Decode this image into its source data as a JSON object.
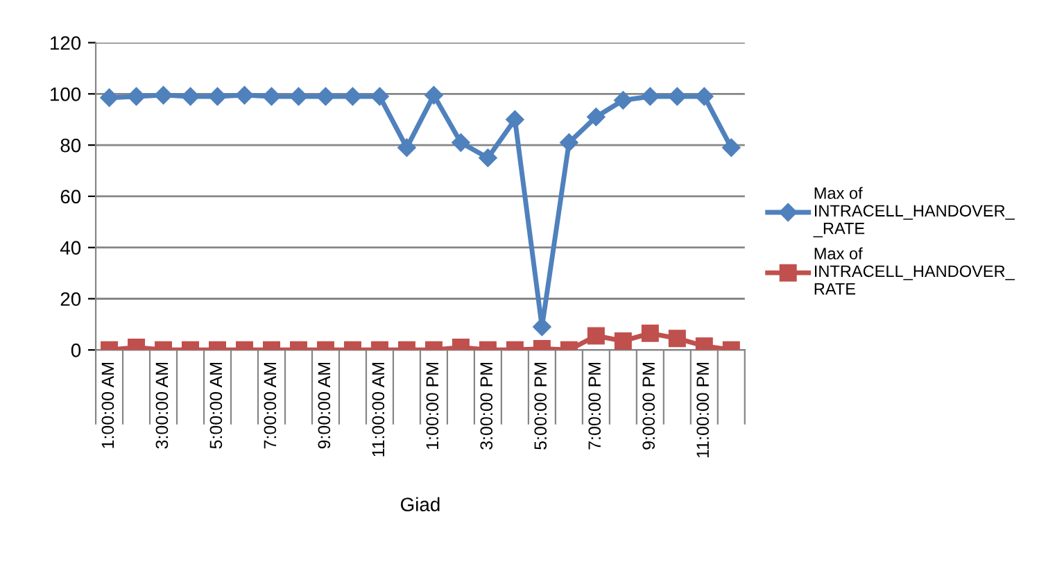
{
  "chart_data": {
    "type": "line",
    "xlabel": "Giad",
    "categories": [
      "1:00:00 AM",
      null,
      "3:00:00 AM",
      null,
      "5:00:00 AM",
      null,
      "7:00:00 AM",
      null,
      "9:00:00 AM",
      null,
      "11:00:00 AM",
      null,
      "1:00:00 PM",
      null,
      "3:00:00 PM",
      null,
      "5:00:00 PM",
      null,
      "7:00:00 PM",
      null,
      "9:00:00 PM",
      null,
      "11:00:00 PM",
      null
    ],
    "series": [
      {
        "name": "Max of\nINTRACELL_HANDOVER_\n_RATE",
        "color": "#4f81bd",
        "marker": "diamond",
        "values": [
          98.5,
          99,
          99.5,
          99,
          99,
          99.5,
          99,
          99,
          99,
          99,
          99,
          79,
          99.5,
          81,
          75,
          90,
          9,
          81,
          91,
          97.5,
          99,
          99,
          99,
          79
        ]
      },
      {
        "name": "Max of\nINTRACELL_HANDOVER_\nRATE",
        "color": "#c0504d",
        "marker": "square",
        "values": [
          0,
          1,
          0,
          0,
          0,
          0,
          0,
          0,
          0,
          0,
          0,
          0,
          0,
          1,
          0,
          0,
          0.5,
          0,
          5.5,
          3.5,
          6.5,
          4.5,
          1.5,
          0
        ]
      }
    ],
    "ylim": [
      0,
      120
    ],
    "yticks": [
      0,
      20,
      40,
      60,
      80,
      100,
      120
    ],
    "grid": "y",
    "legend": "right"
  }
}
